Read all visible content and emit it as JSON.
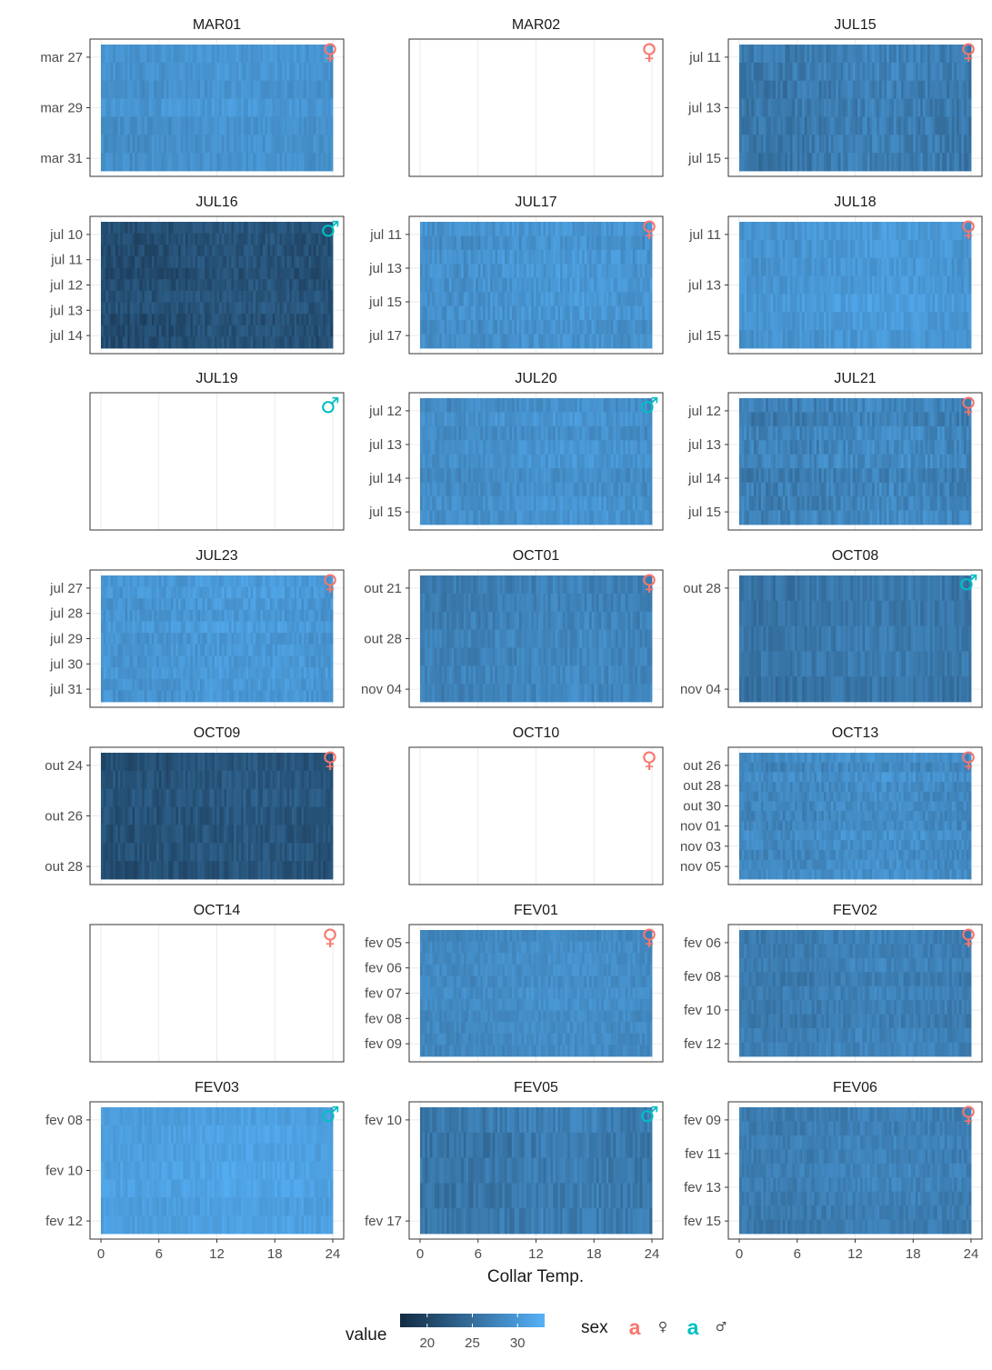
{
  "chart_data": {
    "type": "heatmap",
    "title": "",
    "xlabel": "Collar Temp.",
    "ylabel": "",
    "x_ticks": [
      0,
      6,
      12,
      18,
      24
    ],
    "xlim": [
      0,
      24
    ],
    "grid": true,
    "legend_position": "bottom",
    "color_scale": {
      "name": "value",
      "ticks": [
        20,
        25,
        30
      ],
      "range": [
        17,
        33
      ],
      "low_color": "#132B43",
      "high_color": "#56B1F7"
    },
    "sex_legend": {
      "title": "sex",
      "entries": [
        {
          "glyph": "a",
          "label": "♀",
          "color": "#F8766D"
        },
        {
          "glyph": "a",
          "label": "♂",
          "color": "#00BFC4"
        }
      ]
    },
    "panels": [
      {
        "id": "MAR01",
        "sex": "♀",
        "empty": false,
        "mean_value": 29.5,
        "variability": 1.4,
        "y_ticks": [
          "mar 27",
          "mar 29",
          "mar 31"
        ]
      },
      {
        "id": "MAR02",
        "sex": "♀",
        "empty": true,
        "y_ticks": []
      },
      {
        "id": "JUL15",
        "sex": "♀",
        "empty": false,
        "mean_value": 27.0,
        "variability": 2.2,
        "y_ticks": [
          "jul 11",
          "jul 13",
          "jul 15"
        ]
      },
      {
        "id": "JUL16",
        "sex": "♂",
        "empty": false,
        "mean_value": 21.5,
        "variability": 1.8,
        "y_ticks": [
          "jul 10",
          "jul 11",
          "jul 12",
          "jul 13",
          "jul 14"
        ]
      },
      {
        "id": "JUL17",
        "sex": "♀",
        "empty": false,
        "mean_value": 29.5,
        "variability": 1.8,
        "y_ticks": [
          "jul 11",
          "jul 13",
          "jul 15",
          "jul 17"
        ]
      },
      {
        "id": "JUL18",
        "sex": "♀",
        "empty": false,
        "mean_value": 30.0,
        "variability": 1.6,
        "y_ticks": [
          "jul 11",
          "jul 13",
          "jul 15"
        ]
      },
      {
        "id": "JUL19",
        "sex": "♂",
        "empty": true,
        "y_ticks": []
      },
      {
        "id": "JUL20",
        "sex": "♂",
        "empty": false,
        "mean_value": 29.0,
        "variability": 1.6,
        "y_ticks": [
          "jul 12",
          "jul 13",
          "jul 14",
          "jul 15"
        ]
      },
      {
        "id": "JUL21",
        "sex": "♀",
        "empty": false,
        "mean_value": 27.5,
        "variability": 2.2,
        "y_ticks": [
          "jul 12",
          "jul 13",
          "jul 14",
          "jul 15"
        ]
      },
      {
        "id": "JUL23",
        "sex": "♀",
        "empty": false,
        "mean_value": 30.0,
        "variability": 1.6,
        "y_ticks": [
          "jul 27",
          "jul 28",
          "jul 29",
          "jul 30",
          "jul 31"
        ]
      },
      {
        "id": "OCT01",
        "sex": "♀",
        "empty": false,
        "mean_value": 27.5,
        "variability": 1.8,
        "y_ticks": [
          "out 21",
          "out 28",
          "nov 04"
        ]
      },
      {
        "id": "OCT08",
        "sex": "♂",
        "empty": false,
        "mean_value": 26.0,
        "variability": 1.8,
        "y_ticks": [
          "out 28",
          "nov 04"
        ]
      },
      {
        "id": "OCT09",
        "sex": "♀",
        "empty": false,
        "mean_value": 22.0,
        "variability": 1.8,
        "y_ticks": [
          "out 24",
          "out 26",
          "out 28"
        ]
      },
      {
        "id": "OCT10",
        "sex": "♀",
        "empty": true,
        "y_ticks": []
      },
      {
        "id": "OCT13",
        "sex": "♀",
        "empty": false,
        "mean_value": 28.5,
        "variability": 1.8,
        "y_ticks": [
          "out 26",
          "out 28",
          "out 30",
          "nov 01",
          "nov 03",
          "nov 05"
        ]
      },
      {
        "id": "OCT14",
        "sex": "♀",
        "empty": true,
        "y_ticks": []
      },
      {
        "id": "FEV01",
        "sex": "♀",
        "empty": false,
        "mean_value": 28.5,
        "variability": 1.4,
        "y_ticks": [
          "fev 05",
          "fev 06",
          "fev 07",
          "fev 08",
          "fev 09"
        ]
      },
      {
        "id": "FEV02",
        "sex": "♀",
        "empty": false,
        "mean_value": 27.0,
        "variability": 1.6,
        "y_ticks": [
          "fev 06",
          "fev 08",
          "fev 10",
          "fev 12"
        ]
      },
      {
        "id": "FEV03",
        "sex": "♂",
        "empty": false,
        "mean_value": 31.0,
        "variability": 1.2,
        "y_ticks": [
          "fev 08",
          "fev 10",
          "fev 12"
        ]
      },
      {
        "id": "FEV05",
        "sex": "♂",
        "empty": false,
        "mean_value": 26.5,
        "variability": 2.0,
        "y_ticks": [
          "fev 10",
          "fev 17"
        ]
      },
      {
        "id": "FEV06",
        "sex": "♀",
        "empty": false,
        "mean_value": 27.0,
        "variability": 1.6,
        "y_ticks": [
          "fev 09",
          "fev 11",
          "fev 13",
          "fev 15"
        ]
      }
    ]
  }
}
